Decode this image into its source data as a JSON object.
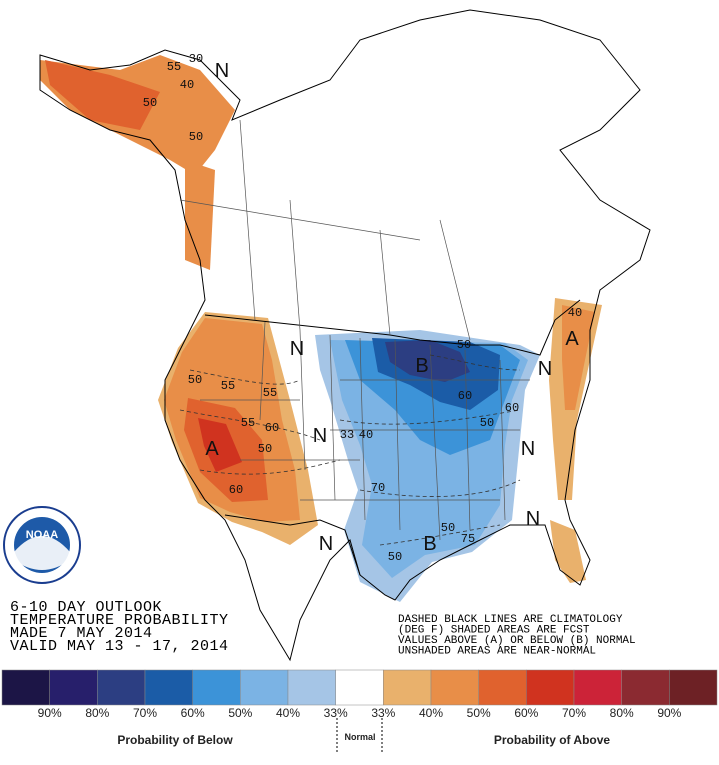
{
  "header": {
    "lines": [
      "6-10 DAY OUTLOOK",
      "TEMPERATURE PROBABILITY",
      "MADE  7 MAY 2014",
      "VALID  MAY 13 - 17, 2014"
    ]
  },
  "notes": [
    "DASHED BLACK LINES ARE CLIMATOLOGY",
    "(DEG F) SHADED AREAS ARE FCST",
    "VALUES ABOVE (A) OR BELOW (B) NORMAL",
    "UNSHADED AREAS ARE NEAR-NORMAL"
  ],
  "logo": "NOAA",
  "map_labels": [
    "A",
    "A",
    "B",
    "B",
    "N",
    "N",
    "N",
    "N",
    "N",
    "N",
    "N",
    "50",
    "55",
    "55",
    "60",
    "50",
    "55",
    "60",
    "33",
    "40",
    "50",
    "60",
    "50",
    "60",
    "50",
    "75",
    "50",
    "70",
    "50",
    "40",
    "55",
    "30",
    "50",
    "40"
  ],
  "legend": {
    "below": [
      {
        "label": "90%",
        "color": "#1c1546"
      },
      {
        "label": "80%",
        "color": "#271f6b"
      },
      {
        "label": "70%",
        "color": "#2c3e82"
      },
      {
        "label": "60%",
        "color": "#1b5ca7"
      },
      {
        "label": "50%",
        "color": "#3c93d8"
      },
      {
        "label": "40%",
        "color": "#7bb3e4"
      },
      {
        "label": "33%",
        "color": "#a5c5e6"
      }
    ],
    "normal_color": "#ffffff",
    "above": [
      {
        "label": "33%",
        "color": "#e9b16c"
      },
      {
        "label": "40%",
        "color": "#e88e48"
      },
      {
        "label": "50%",
        "color": "#e0622e"
      },
      {
        "label": "60%",
        "color": "#d0331f"
      },
      {
        "label": "70%",
        "color": "#cc2338"
      },
      {
        "label": "80%",
        "color": "#8b2a31"
      },
      {
        "label": "90%",
        "color": "#6d2125"
      }
    ],
    "below_title": "Probability of Below",
    "normal_title": "Normal",
    "above_title": "Probability of Above"
  }
}
